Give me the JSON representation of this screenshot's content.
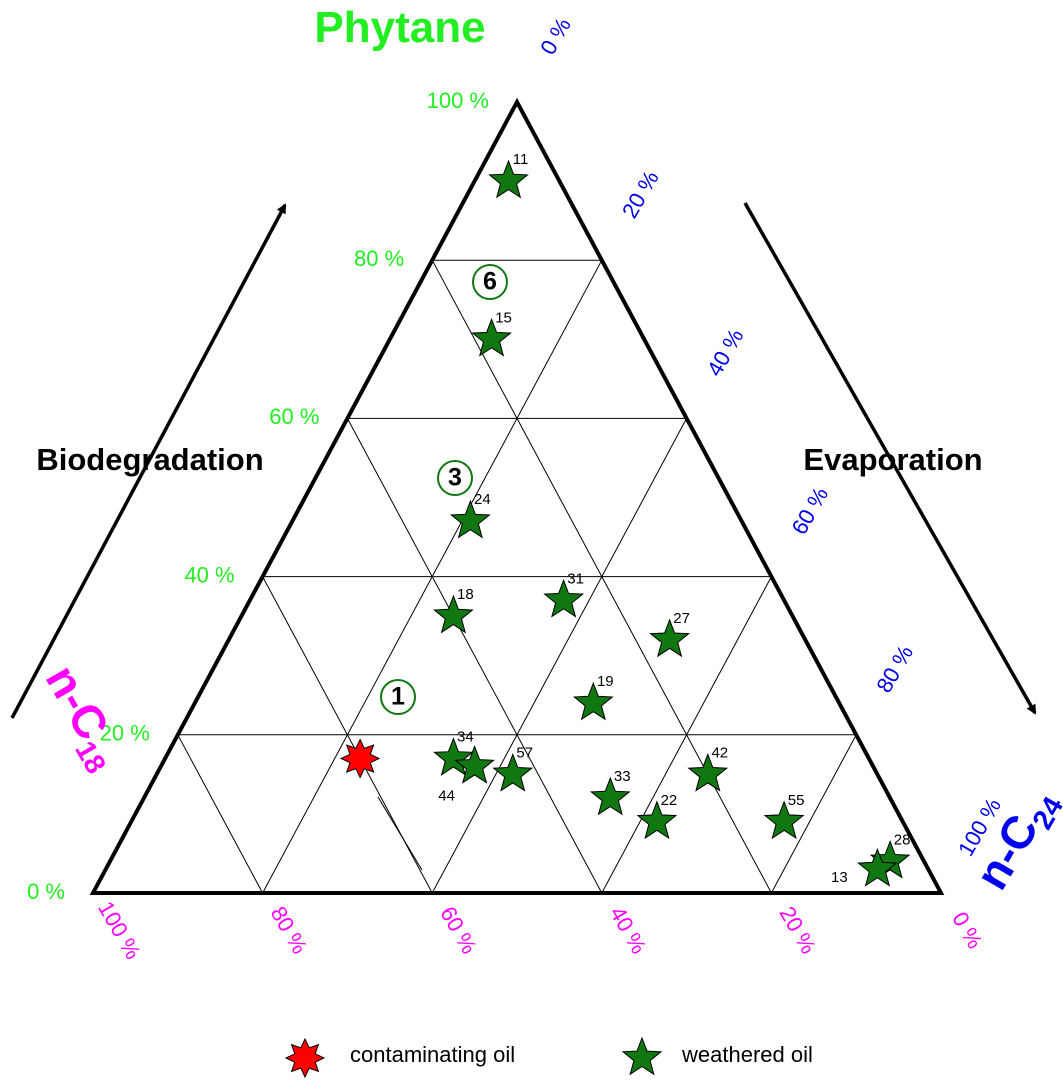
{
  "chart_data": {
    "type": "ternary",
    "axes": [
      {
        "name": "Phytane",
        "color": "#22ee22",
        "ticks": [
          {
            "value": 0,
            "label": "0 %"
          },
          {
            "value": 20,
            "label": "20 %"
          },
          {
            "value": 40,
            "label": "40 %"
          },
          {
            "value": 60,
            "label": "60 %"
          },
          {
            "value": 80,
            "label": "80 %"
          },
          {
            "value": 100,
            "label": "100 %"
          }
        ]
      },
      {
        "name": "n-C",
        "name_sub": "24",
        "color": "#0000ee",
        "ticks": [
          {
            "value": 0,
            "label": "0 %"
          },
          {
            "value": 20,
            "label": "20 %"
          },
          {
            "value": 40,
            "label": "40 %"
          },
          {
            "value": 60,
            "label": "60 %"
          },
          {
            "value": 80,
            "label": "80 %"
          },
          {
            "value": 100,
            "label": "100 %"
          }
        ]
      },
      {
        "name": "n-C",
        "name_sub": "18",
        "color": "#ff00ff",
        "ticks": [
          {
            "value": 0,
            "label": "0 %"
          },
          {
            "value": 20,
            "label": "20 %"
          },
          {
            "value": 40,
            "label": "40 %"
          },
          {
            "value": 60,
            "label": "60 %"
          },
          {
            "value": 80,
            "label": "80 %"
          },
          {
            "value": 100,
            "label": "100 %"
          }
        ]
      }
    ],
    "grid": true,
    "annotations": [
      "Biodegradation",
      "Evaporation"
    ],
    "regions": [
      "6",
      "3",
      "1"
    ],
    "series": [
      {
        "name": "contaminating oil",
        "color": "#ff0000",
        "marker": "star8",
        "phytane": [
          17
        ],
        "nc24": [
          23
        ],
        "nc18": [
          60
        ]
      },
      {
        "name": "weathered oil",
        "color": "#117711",
        "marker": "star5",
        "labels": [
          "11",
          "15",
          "24",
          "18",
          "31",
          "27",
          "19",
          "34",
          "44",
          "57",
          "33",
          "22",
          "42",
          "55",
          "28",
          "13"
        ],
        "phytane": [
          90,
          70,
          47,
          35,
          37,
          32,
          24,
          17,
          16,
          15,
          12,
          9,
          15,
          9,
          4,
          3
        ],
        "nc24": [
          4,
          12,
          21,
          25,
          37,
          52,
          47,
          34,
          37,
          42,
          55,
          62,
          65,
          77,
          92,
          91
        ],
        "nc18": [
          6,
          18,
          32,
          40,
          26,
          16,
          29,
          49,
          47,
          43,
          33,
          29,
          20,
          14,
          4,
          6
        ]
      }
    ]
  }
}
